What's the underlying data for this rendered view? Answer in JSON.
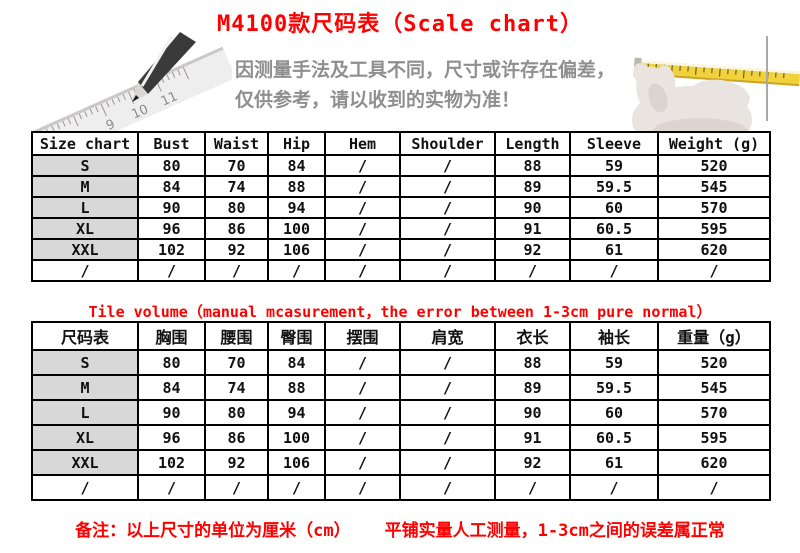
{
  "title": "M4100款尺码表（Scale chart）",
  "banner": {
    "notice_line1": "因测量手法及工具不同，尺寸或许存在偏差，",
    "notice_line2": "仅供参考，请以收到的实物为准！",
    "illustrations": [
      "pencil-and-ruler",
      "hand-holding-tape-measure"
    ]
  },
  "table_en": {
    "headers": [
      "Size chart",
      "Bust",
      "Waist",
      "Hip",
      "Hem",
      "Shoulder",
      "Length",
      "Sleeve",
      "Weight (g)"
    ],
    "rows": [
      [
        "S",
        "80",
        "70",
        "84",
        "/",
        "/",
        "88",
        "59",
        "520"
      ],
      [
        "M",
        "84",
        "74",
        "88",
        "/",
        "/",
        "89",
        "59.5",
        "545"
      ],
      [
        "L",
        "90",
        "80",
        "94",
        "/",
        "/",
        "90",
        "60",
        "570"
      ],
      [
        "XL",
        "96",
        "86",
        "100",
        "/",
        "/",
        "91",
        "60.5",
        "595"
      ],
      [
        "XXL",
        "102",
        "92",
        "106",
        "/",
        "/",
        "92",
        "61",
        "620"
      ],
      [
        "/",
        "/",
        "/",
        "/",
        "/",
        "/",
        "/",
        "/",
        "/"
      ]
    ]
  },
  "middle_note": "Tile volume（manual mcasurement，the error between 1-3cm pure normal）",
  "table_cn": {
    "headers": [
      "尺码表",
      "胸围",
      "腰围",
      "臀围",
      "摆围",
      "肩宽",
      "衣长",
      "袖长",
      "重量（g）"
    ],
    "rows": [
      [
        "S",
        "80",
        "70",
        "84",
        "/",
        "/",
        "88",
        "59",
        "520"
      ],
      [
        "M",
        "84",
        "74",
        "88",
        "/",
        "/",
        "89",
        "59.5",
        "545"
      ],
      [
        "L",
        "90",
        "80",
        "94",
        "/",
        "/",
        "90",
        "60",
        "570"
      ],
      [
        "XL",
        "96",
        "86",
        "100",
        "/",
        "/",
        "91",
        "60.5",
        "595"
      ],
      [
        "XXL",
        "102",
        "92",
        "106",
        "/",
        "/",
        "92",
        "61",
        "620"
      ],
      [
        "/",
        "/",
        "/",
        "/",
        "/",
        "/",
        "/",
        "/",
        "/"
      ]
    ]
  },
  "footer_note": {
    "part1": "备注：以上尺寸的单位为厘米（cm）",
    "part2": "平铺实量人工测量，1-3cm之间的误差属正常"
  },
  "colors": {
    "accent_red": "#ff0000",
    "row_header_bg": "#d8d8d8",
    "table_border": "#000000",
    "banner_text_gray": "#8f8f8f",
    "tape_yellow": "#f2d23c"
  }
}
